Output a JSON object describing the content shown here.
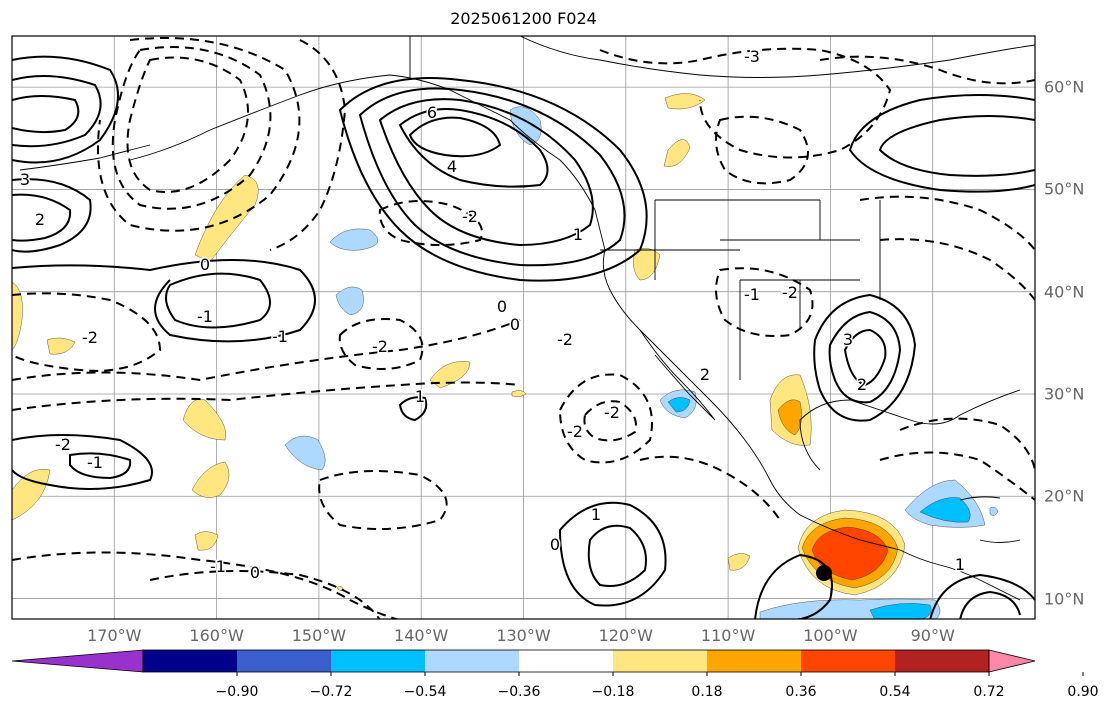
{
  "title": "2025061200 F024",
  "map": {
    "type": "filled contour + line contour map",
    "projection": "lat-lon",
    "lon_range": [
      -180,
      -80
    ],
    "lat_range": [
      8,
      65
    ],
    "lon_ticks": [
      "170°W",
      "160°W",
      "150°W",
      "140°W",
      "130°W",
      "120°W",
      "110°W",
      "100°W",
      "90°W"
    ],
    "lat_ticks": [
      "60°N",
      "50°N",
      "40°N",
      "30°N",
      "20°N",
      "10°N"
    ],
    "contour_labels": [
      "6",
      "4",
      "3",
      "2",
      "1",
      "0",
      "0",
      "0",
      "-1",
      "-2",
      "-2",
      "-2",
      "-3",
      "-1",
      "-2",
      "1",
      "0",
      "2",
      "3",
      "-2",
      "-1",
      "1",
      "0",
      "-1",
      "-2",
      "-2",
      "1",
      "-2",
      "-1",
      "2"
    ],
    "storm_marker": "black dot near 101°W, 12°N"
  },
  "colorbar": {
    "ticks": [
      "−0.90",
      "−0.72",
      "−0.54",
      "−0.36",
      "−0.18",
      "0.18",
      "0.36",
      "0.54",
      "0.72",
      "0.90"
    ],
    "colors": [
      "#9932cc",
      "#00008b",
      "#3a5fcd",
      "#00bfff",
      "#add8ff",
      "#ffffff",
      "#ffe680",
      "#ffa500",
      "#ff4500",
      "#b22222",
      "#ff88aa"
    ]
  }
}
